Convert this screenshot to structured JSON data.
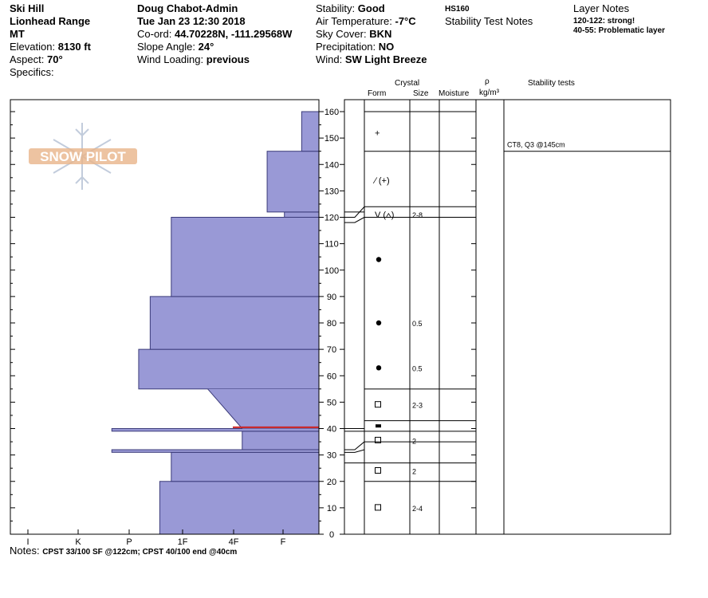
{
  "header": {
    "col1": {
      "name": "Ski Hill",
      "range": "Lionhead Range",
      "state": "MT",
      "elevation_label": "Elevation:",
      "elevation": "8130 ft",
      "aspect_label": "Aspect:",
      "aspect": "70°",
      "specifics_label": "Specifics:"
    },
    "col2": {
      "observer": "Doug Chabot-Admin",
      "datetime": "Tue Jan 23 12:30 2018",
      "coord_label": "Co-ord:",
      "coord": "44.70228N, -111.29568W",
      "slope_label": "Slope Angle:",
      "slope": "24°",
      "wind_loading_label": "Wind Loading:",
      "wind_loading": "previous"
    },
    "col3": {
      "stability_label": "Stability:",
      "stability": "Good",
      "air_temp_label": "Air Temperature:",
      "air_temp": "-7°C",
      "sky_label": "Sky Cover:",
      "sky": "BKN",
      "precip_label": "Precipitation:",
      "precip": "NO",
      "wind_label": "Wind:",
      "wind": "SW Light Breeze"
    },
    "col4": {
      "hs": "HS160",
      "stability_test_notes": "Stability Test Notes"
    },
    "col5": {
      "title": "Layer Notes",
      "note1": "120-122: strong!",
      "note2": "40-55: Problematic layer"
    }
  },
  "columns": {
    "crystal": "Crystal",
    "form": "Form",
    "size": "Size",
    "moisture": "Moisture",
    "rho": "ρ",
    "density_unit": "kg/m³",
    "stability_tests": "Stability tests"
  },
  "logo_text": "SNOW PILOT",
  "notes_label": "Notes:",
  "notes": "CPST 33/100 SF @122cm; CPST 40/100 end @40cm",
  "chart_data": {
    "type": "bar",
    "title": "",
    "y_axis": {
      "range": [
        0,
        160
      ],
      "ticks": [
        0,
        10,
        20,
        30,
        40,
        50,
        60,
        70,
        80,
        90,
        100,
        110,
        120,
        130,
        140,
        150,
        160
      ]
    },
    "hardness_ticks": [
      "I",
      "K",
      "P",
      "1F",
      "4F",
      "F"
    ],
    "hardness_layers": [
      {
        "bottom": 0,
        "top": 20,
        "hardness": 4.15
      },
      {
        "bottom": 20,
        "top": 31,
        "hardness": 3.85
      },
      {
        "bottom": 31,
        "top": 32,
        "hardness": 5.4
      },
      {
        "bottom": 32,
        "top": 39,
        "hardness": 2.0
      },
      {
        "bottom": 39,
        "top": 40,
        "hardness": 5.4
      },
      {
        "bottom": 40,
        "top": 55,
        "hardness": 2.0
      },
      {
        "bottom": 55,
        "top": 70,
        "hardness": 4.7
      },
      {
        "bottom": 70,
        "top": 90,
        "hardness": 4.4
      },
      {
        "bottom": 90,
        "top": 120,
        "hardness": 3.85
      },
      {
        "bottom": 120,
        "top": 122,
        "hardness": 0.9
      },
      {
        "bottom": 122,
        "top": 145,
        "hardness": 1.35
      },
      {
        "bottom": 145,
        "top": 160,
        "hardness": 0.45
      }
    ],
    "slope_segments": [
      {
        "from": [
          40,
          2.0
        ],
        "to": [
          55,
          2.9
        ]
      }
    ],
    "red_layer": {
      "height": 40.5
    },
    "layer_boundaries": [
      20,
      27,
      35,
      39,
      43,
      55,
      120,
      124,
      145,
      160
    ],
    "boundary_links": [
      {
        "height": 122,
        "chart_y": 122
      },
      {
        "height": 124,
        "chart_y": 120
      },
      {
        "height": 120,
        "chart_y": 118
      },
      {
        "height": 40,
        "chart_y": 40
      },
      {
        "height": 39,
        "chart_y": 39
      },
      {
        "height": 35,
        "chart_y": 32
      },
      {
        "height": 32,
        "chart_y": 31
      },
      {
        "height": 27,
        "chart_y": 27
      }
    ],
    "crystal_rows": [
      {
        "y": 152,
        "form": "+",
        "size": ""
      },
      {
        "y": 134,
        "form": "∕ (+)",
        "size": ""
      },
      {
        "y": 121,
        "form": "V (⩟)",
        "size": "2-8"
      },
      {
        "y": 104,
        "form": "●",
        "size": ""
      },
      {
        "y": 80,
        "form": "●",
        "size": "0.5"
      },
      {
        "y": 63,
        "form": "●",
        "size": "0.5"
      },
      {
        "y": 49,
        "form": "□",
        "size": "2-3"
      },
      {
        "y": 41,
        "form": "▬",
        "size": ""
      },
      {
        "y": 35.5,
        "form": "□",
        "size": "2"
      },
      {
        "y": 24,
        "form": "□",
        "size": "2"
      },
      {
        "y": 10,
        "form": "□",
        "size": "2-4"
      }
    ],
    "stability_tests": [
      {
        "height": 145,
        "label": "CT8, Q3 @145cm"
      }
    ]
  }
}
